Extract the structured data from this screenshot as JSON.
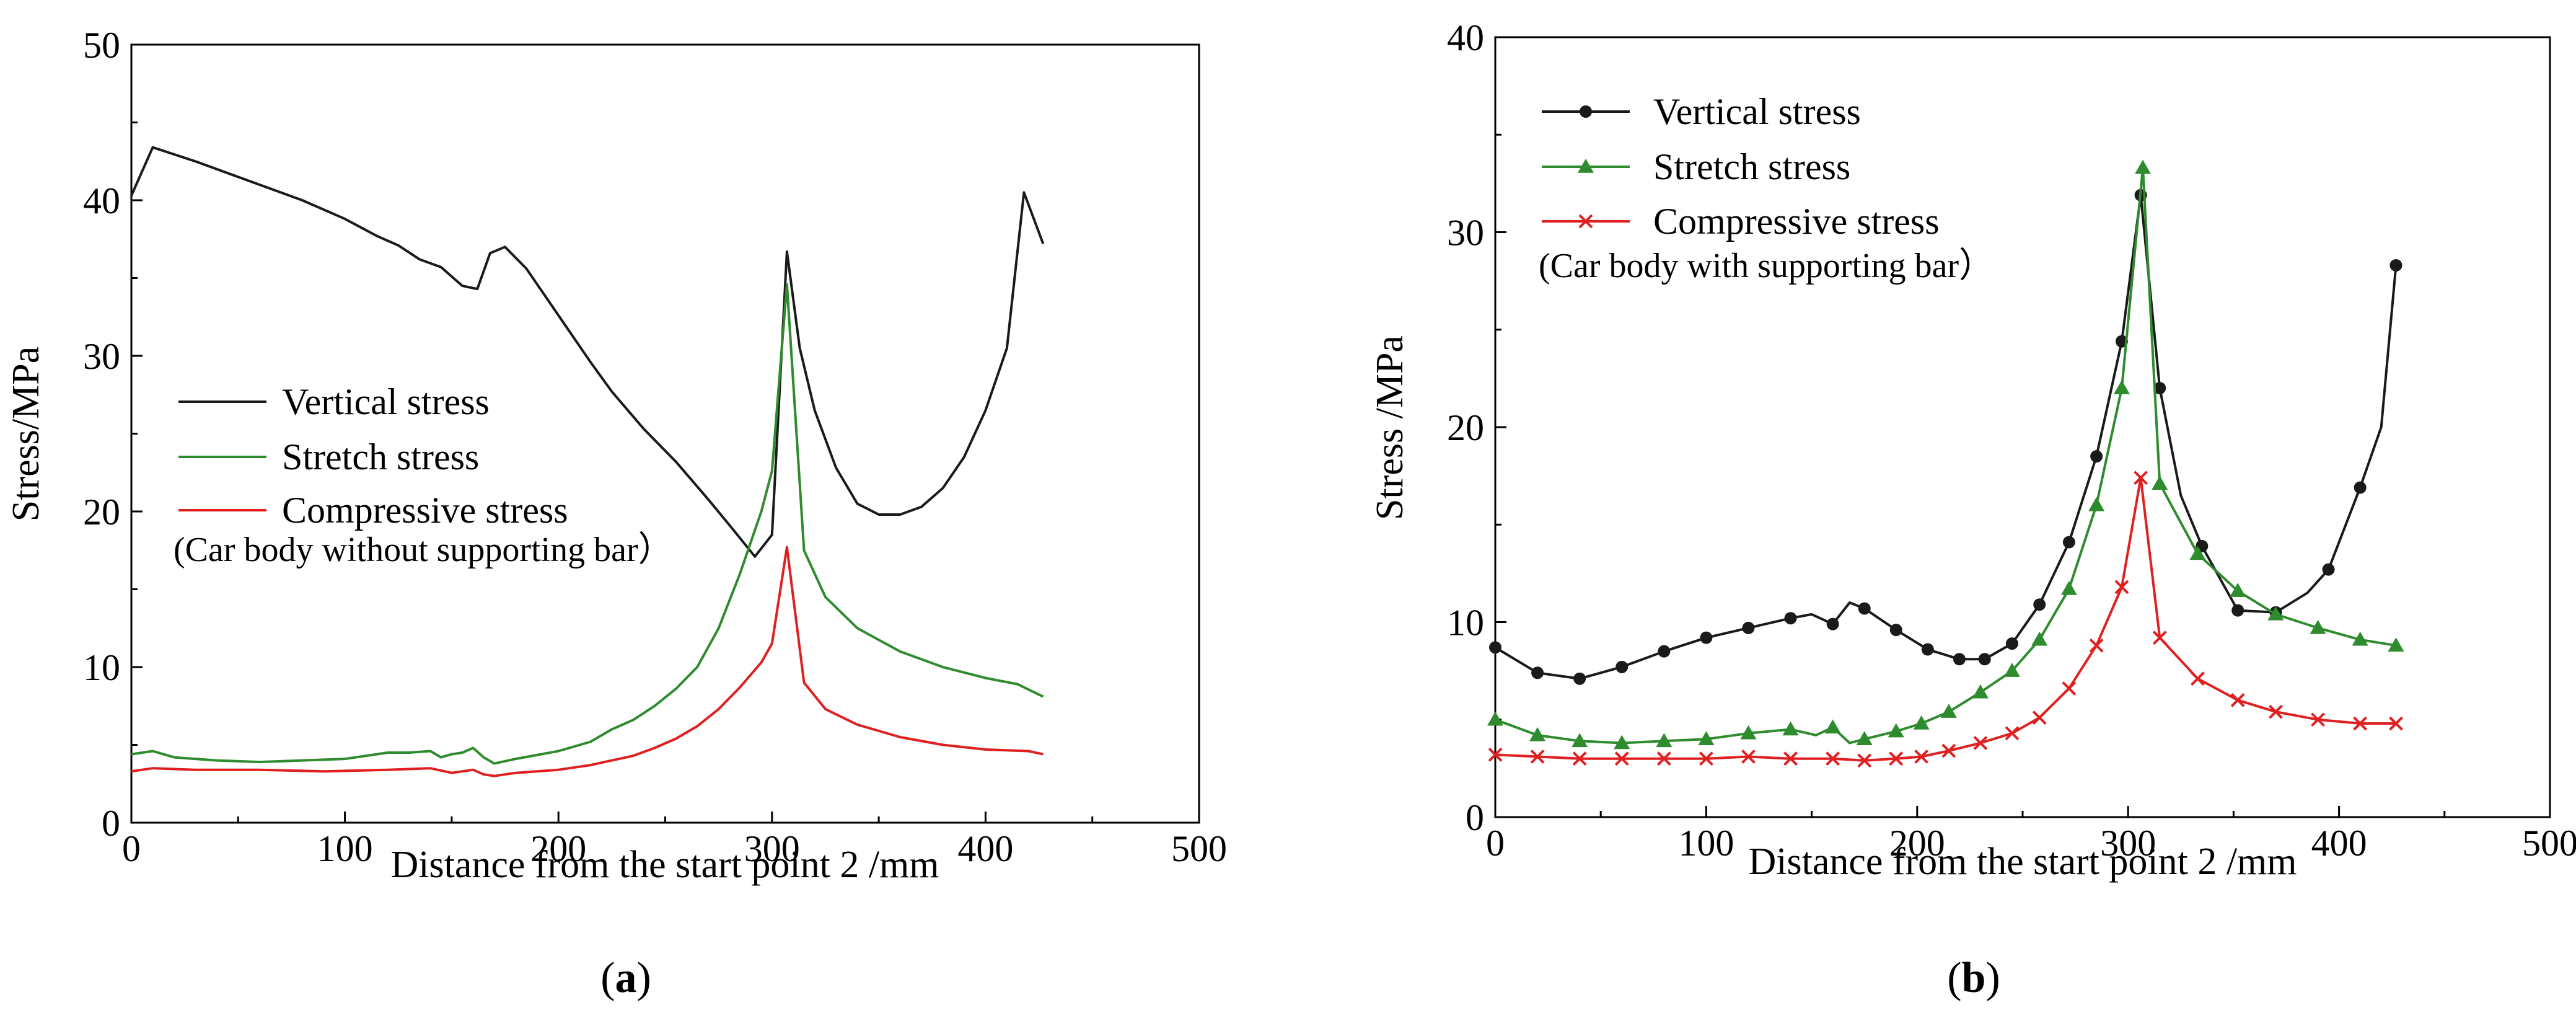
{
  "chart_data": [
    {
      "type": "line",
      "panel": "a",
      "caption": {
        "open": "(",
        "letter": "a",
        "close": ")"
      },
      "xlabel": "Distance from the start point 2 /mm",
      "ylabel": "Stress/MPa",
      "xlim": [
        0,
        500
      ],
      "ylim": [
        0,
        50
      ],
      "xticks": [
        0,
        100,
        200,
        300,
        400,
        500
      ],
      "yticks": [
        0,
        10,
        20,
        30,
        40,
        50
      ],
      "minor_x_step": 50,
      "minor_y_step": 5,
      "legend_placement": "center-left",
      "annotation": "(Car body without supporting bar）",
      "series": [
        {
          "name": "Vertical stress",
          "color": "#1a1a1a",
          "marker": "none",
          "x": [
            0,
            10,
            30,
            50,
            80,
            100,
            115,
            125,
            135,
            145,
            155,
            162,
            168,
            175,
            185,
            200,
            215,
            225,
            240,
            255,
            270,
            282,
            292,
            300,
            307,
            313,
            320,
            330,
            340,
            350,
            360,
            370,
            380,
            390,
            400,
            410,
            418,
            427
          ],
          "values": [
            40.3,
            43.4,
            42.5,
            41.5,
            40.0,
            38.8,
            37.7,
            37.1,
            36.2,
            35.7,
            34.5,
            34.3,
            36.6,
            37.0,
            35.6,
            32.6,
            29.6,
            27.7,
            25.3,
            23.2,
            20.8,
            18.8,
            17.1,
            18.5,
            36.7,
            30.5,
            26.5,
            22.8,
            20.5,
            19.8,
            19.8,
            20.3,
            21.5,
            23.5,
            26.5,
            30.5,
            40.5,
            37.2
          ]
        },
        {
          "name": "Stretch stress",
          "color": "#2e8b2e",
          "marker": "none",
          "x": [
            0,
            10,
            20,
            40,
            60,
            80,
            100,
            110,
            120,
            130,
            140,
            145,
            150,
            155,
            160,
            165,
            170,
            180,
            200,
            215,
            225,
            235,
            245,
            255,
            265,
            275,
            285,
            295,
            300,
            307,
            315,
            325,
            340,
            360,
            380,
            400,
            415,
            427
          ],
          "values": [
            4.4,
            4.6,
            4.2,
            4.0,
            3.9,
            4.0,
            4.1,
            4.3,
            4.5,
            4.5,
            4.6,
            4.2,
            4.4,
            4.5,
            4.8,
            4.2,
            3.8,
            4.1,
            4.6,
            5.2,
            6.0,
            6.6,
            7.5,
            8.6,
            10.0,
            12.5,
            16.0,
            20.0,
            22.6,
            34.6,
            17.5,
            14.5,
            12.5,
            11.0,
            10.0,
            9.3,
            8.9,
            8.1
          ]
        },
        {
          "name": "Compressive stress",
          "color": "#e02020",
          "marker": "none",
          "x": [
            0,
            10,
            30,
            60,
            90,
            120,
            140,
            150,
            160,
            165,
            170,
            180,
            200,
            215,
            225,
            235,
            245,
            255,
            265,
            275,
            285,
            295,
            300,
            307,
            315,
            325,
            340,
            360,
            380,
            400,
            420,
            427
          ],
          "values": [
            3.3,
            3.5,
            3.4,
            3.4,
            3.3,
            3.4,
            3.5,
            3.2,
            3.4,
            3.1,
            3.0,
            3.2,
            3.4,
            3.7,
            4.0,
            4.3,
            4.8,
            5.4,
            6.2,
            7.3,
            8.7,
            10.3,
            11.5,
            17.7,
            9.0,
            7.3,
            6.3,
            5.5,
            5.0,
            4.7,
            4.6,
            4.4
          ]
        }
      ]
    },
    {
      "type": "line",
      "panel": "b",
      "caption": {
        "open": "(",
        "letter": "b",
        "close": ")"
      },
      "xlabel": "Distance from the start point 2 /mm",
      "ylabel": "Stress /MPa",
      "xlim": [
        0,
        500
      ],
      "ylim": [
        0,
        40
      ],
      "xticks": [
        0,
        100,
        200,
        300,
        400,
        500
      ],
      "yticks": [
        0,
        10,
        20,
        30,
        40
      ],
      "minor_x_step": 50,
      "minor_y_step": 5,
      "legend_placement": "top-left",
      "annotation": "(Car body with supporting bar）",
      "series": [
        {
          "name": "Vertical stress",
          "color": "#1a1a1a",
          "marker": "circle",
          "x": [
            0,
            20,
            40,
            60,
            80,
            100,
            120,
            140,
            150,
            160,
            168,
            175,
            190,
            205,
            220,
            232,
            245,
            258,
            272,
            285,
            297,
            306,
            315,
            325,
            335,
            352,
            370,
            385,
            395,
            410,
            420,
            427
          ],
          "values": [
            8.7,
            7.4,
            7.1,
            7.7,
            8.5,
            9.2,
            9.7,
            10.2,
            10.4,
            9.9,
            11.0,
            10.7,
            9.6,
            8.6,
            8.1,
            8.1,
            8.9,
            10.9,
            14.1,
            18.5,
            24.4,
            31.9,
            22.0,
            16.5,
            13.9,
            10.6,
            10.5,
            11.5,
            12.7,
            16.9,
            20.0,
            28.3
          ],
          "marked": [
            true,
            true,
            true,
            true,
            true,
            true,
            true,
            true,
            false,
            true,
            false,
            true,
            true,
            true,
            true,
            true,
            true,
            true,
            true,
            true,
            true,
            true,
            true,
            false,
            true,
            true,
            true,
            false,
            true,
            true,
            false,
            true
          ]
        },
        {
          "name": "Stretch stress",
          "color": "#2e8b2e",
          "marker": "triangle",
          "x": [
            0,
            20,
            40,
            60,
            80,
            100,
            120,
            140,
            152,
            160,
            168,
            175,
            190,
            202,
            215,
            230,
            245,
            258,
            272,
            285,
            297,
            307,
            315,
            333,
            352,
            370,
            390,
            410,
            427
          ],
          "values": [
            5.0,
            4.2,
            3.9,
            3.8,
            3.9,
            4.0,
            4.3,
            4.5,
            4.2,
            4.6,
            3.8,
            4.0,
            4.4,
            4.8,
            5.4,
            6.4,
            7.5,
            9.1,
            11.7,
            16.0,
            22.0,
            33.3,
            17.1,
            13.5,
            11.6,
            10.4,
            9.7,
            9.1,
            8.8
          ],
          "marked": [
            true,
            true,
            true,
            true,
            true,
            true,
            true,
            true,
            false,
            true,
            false,
            true,
            true,
            true,
            true,
            true,
            true,
            true,
            true,
            true,
            true,
            true,
            true,
            true,
            true,
            true,
            true,
            true,
            true
          ]
        },
        {
          "name": "Compressive stress",
          "color": "#e02020",
          "marker": "x",
          "x": [
            0,
            20,
            40,
            60,
            80,
            100,
            120,
            140,
            160,
            175,
            190,
            202,
            215,
            230,
            245,
            258,
            272,
            285,
            297,
            306,
            315,
            333,
            352,
            370,
            390,
            410,
            427
          ],
          "values": [
            3.2,
            3.1,
            3.0,
            3.0,
            3.0,
            3.0,
            3.1,
            3.0,
            3.0,
            2.9,
            3.0,
            3.1,
            3.4,
            3.8,
            4.3,
            5.1,
            6.6,
            8.8,
            11.8,
            17.4,
            9.2,
            7.1,
            6.0,
            5.4,
            5.0,
            4.8,
            4.8
          ],
          "marked": [
            true,
            true,
            true,
            true,
            true,
            true,
            true,
            true,
            true,
            true,
            true,
            true,
            true,
            true,
            true,
            true,
            true,
            true,
            true,
            true,
            true,
            true,
            true,
            true,
            true,
            true,
            true
          ]
        }
      ]
    }
  ]
}
